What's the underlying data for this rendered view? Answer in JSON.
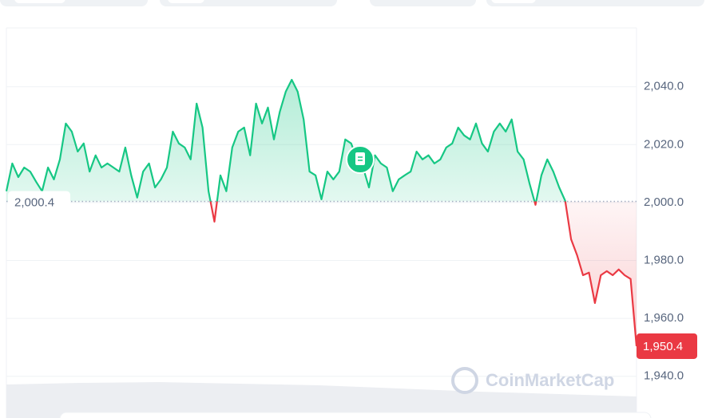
{
  "chart_data": {
    "type": "line",
    "values": [
      2003.9,
      2013.5,
      2008.8,
      2012.1,
      2010.7,
      2007.2,
      2003.9,
      2012.1,
      2008.0,
      2014.9,
      2027.3,
      2024.5,
      2017.6,
      2020.4,
      2010.7,
      2016.3,
      2012.1,
      2013.5,
      2012.1,
      2010.7,
      2019.0,
      2009.4,
      2001.7,
      2010.7,
      2013.5,
      2005.2,
      2008.0,
      2012.1,
      2024.5,
      2020.4,
      2019.0,
      2014.9,
      2034.2,
      2025.9,
      2003.9,
      1993.4,
      2009.4,
      2003.9,
      2019.0,
      2024.5,
      2025.9,
      2016.3,
      2034.2,
      2027.3,
      2032.8,
      2021.8,
      2031.4,
      2038.3,
      2042.4,
      2038.3,
      2028.7,
      2010.7,
      2009.4,
      2001.1,
      2010.7,
      2008.0,
      2010.7,
      2021.8,
      2020.4,
      2014.9,
      2012.1,
      2005.2,
      2016.3,
      2013.5,
      2012.1,
      2003.9,
      2008.0,
      2009.4,
      2010.7,
      2017.6,
      2014.9,
      2016.3,
      2013.5,
      2014.9,
      2019.0,
      2020.4,
      2025.9,
      2023.2,
      2021.8,
      2027.3,
      2020.4,
      2017.6,
      2024.5,
      2027.3,
      2024.5,
      2028.7,
      2017.6,
      2014.9,
      2006.6,
      1999.2,
      2009.4,
      2014.9,
      2010.7,
      2005.2,
      2000.6,
      1987.3,
      1981.8,
      1974.9,
      1975.8,
      1965.3,
      1974.9,
      1976.3,
      1974.9,
      1976.9,
      1974.9,
      1973.6,
      1950.4
    ],
    "color": "#16c784",
    "negative_color": "#ea3943",
    "baseline": {
      "value": 2000.4,
      "label": "2,000.4"
    },
    "current_price": {
      "value": 1950.4,
      "label": "1,950.4"
    },
    "ylim": [
      1925.6,
      2060.3
    ],
    "yticks": [
      {
        "value": 1940,
        "label": "1,940.0"
      },
      {
        "value": 1960,
        "label": "1,960.0"
      },
      {
        "value": 1980,
        "label": "1,980.0"
      },
      {
        "value": 2000,
        "label": "2,000.0"
      },
      {
        "value": 2020,
        "label": "2,020.0"
      },
      {
        "value": 2040,
        "label": "2,040.0"
      }
    ],
    "grid": true,
    "watermark": "CoinMarketCap"
  }
}
